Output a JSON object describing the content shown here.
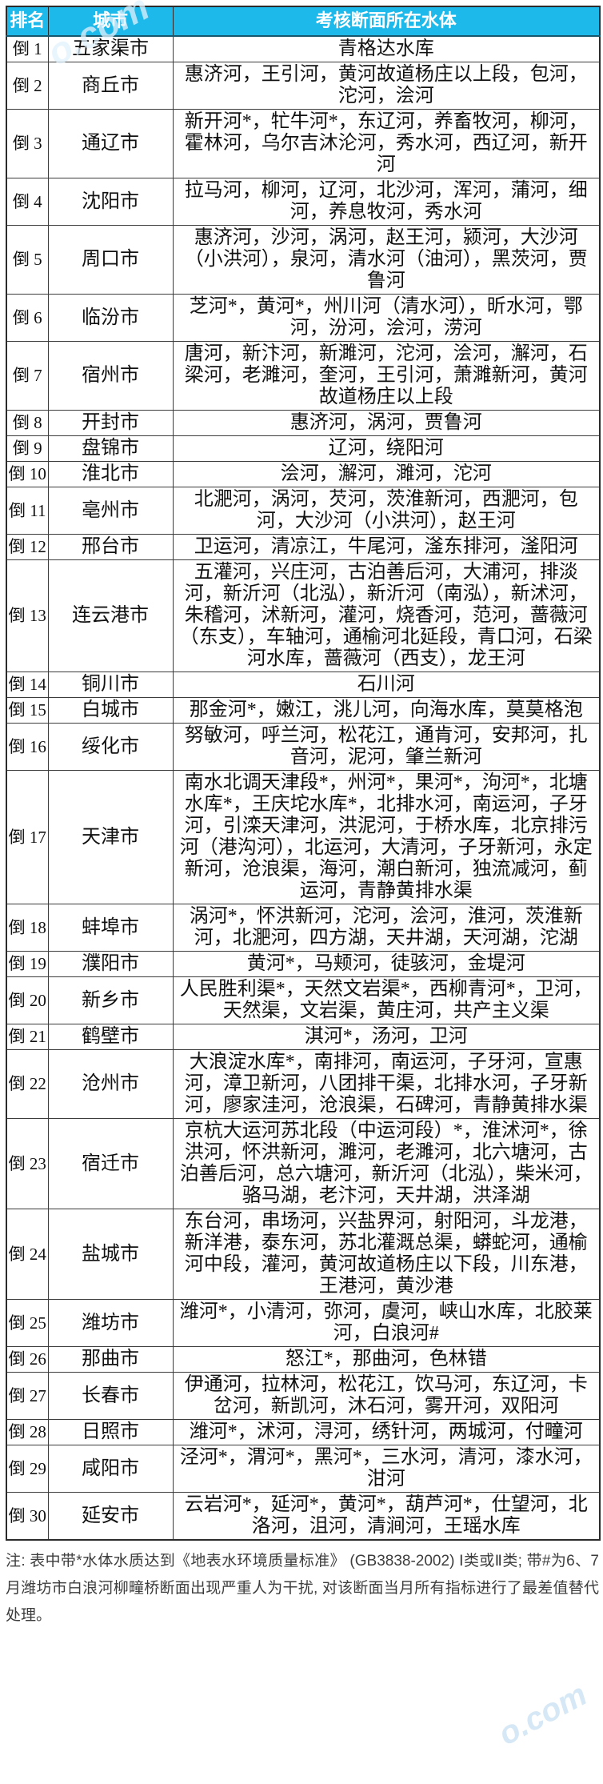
{
  "watermarks": {
    "top": "o.com",
    "bottom": "o.com"
  },
  "colors": {
    "header_bg": "#1db9ea",
    "header_text": "#ffffff",
    "border": "#3c3c3c",
    "outer_border": "#2b2b2b",
    "body_text": "#111111",
    "footnote_text": "#3d3d3d",
    "watermark": "#a5cde8"
  },
  "table": {
    "headers": [
      "排名",
      "城市",
      "考核断面所在水体"
    ],
    "rows": [
      {
        "rank": "倒 1",
        "city": "五家渠市",
        "waters": "青格达水库"
      },
      {
        "rank": "倒 2",
        "city": "商丘市",
        "waters": "惠济河，王引河，黄河故道杨庄以上段，包河，沱河，浍河"
      },
      {
        "rank": "倒 3",
        "city": "通辽市",
        "waters": "新开河*，牤牛河*，东辽河，养畜牧河，柳河，霍林河，乌尔吉沐沦河，秀水河，西辽河，新开河"
      },
      {
        "rank": "倒 4",
        "city": "沈阳市",
        "waters": "拉马河，柳河，辽河，北沙河，浑河，蒲河，细河，养息牧河，秀水河"
      },
      {
        "rank": "倒 5",
        "city": "周口市",
        "waters": "惠济河，沙河，涡河，赵王河，颍河，大沙河（小洪河），泉河，清水河（油河），黑茨河，贾鲁河"
      },
      {
        "rank": "倒 6",
        "city": "临汾市",
        "waters": "芝河*，黄河*，州川河（清水河），昕水河，鄂河，汾河，浍河，涝河"
      },
      {
        "rank": "倒 7",
        "city": "宿州市",
        "waters": "唐河，新汴河，新濉河，沱河，浍河，澥河，石梁河，老濉河，奎河，王引河，萧濉新河，黄河故道杨庄以上段"
      },
      {
        "rank": "倒 8",
        "city": "开封市",
        "waters": "惠济河，涡河，贾鲁河"
      },
      {
        "rank": "倒 9",
        "city": "盘锦市",
        "waters": "辽河，绕阳河"
      },
      {
        "rank": "倒 10",
        "city": "淮北市",
        "waters": "浍河，澥河，濉河，沱河"
      },
      {
        "rank": "倒 11",
        "city": "亳州市",
        "waters": "北淝河，涡河，芡河，茨淮新河，西淝河，包河，大沙河（小洪河），赵王河"
      },
      {
        "rank": "倒 12",
        "city": "邢台市",
        "waters": "卫运河，清凉江，牛尾河，滏东排河，滏阳河"
      },
      {
        "rank": "倒 13",
        "city": "连云港市",
        "waters": "五灌河，兴庄河，古泊善后河，大浦河，排淡河，新沂河（北泓），新沂河（南泓），新沭河，朱稽河，沭新河，灌河，烧香河，范河，蔷薇河（东支），车轴河，通榆河北延段，青口河，石梁河水库，蔷薇河（西支），龙王河"
      },
      {
        "rank": "倒 14",
        "city": "铜川市",
        "waters": "石川河"
      },
      {
        "rank": "倒 15",
        "city": "白城市",
        "waters": "那金河*，嫩江，洮儿河，向海水库，莫莫格泡"
      },
      {
        "rank": "倒 16",
        "city": "绥化市",
        "waters": "努敏河，呼兰河，松花江，通肯河，安邦河，扎音河，泥河，肇兰新河"
      },
      {
        "rank": "倒 17",
        "city": "天津市",
        "waters": "南水北调天津段*，州河*，果河*，泃河*，北塘水库*，王庆坨水库*，北排水河，南运河，子牙河，引滦天津河，洪泥河，于桥水库，北京排污河（港沟河），北运河，大清河，子牙新河，永定新河，沧浪渠，海河，潮白新河，独流减河，蓟运河，青静黄排水渠"
      },
      {
        "rank": "倒 18",
        "city": "蚌埠市",
        "waters": "涡河*，怀洪新河，沱河，浍河，淮河，茨淮新河，北淝河，四方湖，天井湖，天河湖，沱湖"
      },
      {
        "rank": "倒 19",
        "city": "濮阳市",
        "waters": "黄河*，马颊河，徒骇河，金堤河"
      },
      {
        "rank": "倒 20",
        "city": "新乡市",
        "waters": "人民胜利渠*，天然文岩渠*，西柳青河*，卫河，天然渠，文岩渠，黄庄河，共产主义渠"
      },
      {
        "rank": "倒 21",
        "city": "鹤壁市",
        "waters": "淇河*，汤河，卫河"
      },
      {
        "rank": "倒 22",
        "city": "沧州市",
        "waters": "大浪淀水库*，南排河，南运河，子牙河，宣惠河，漳卫新河，八团排干渠，北排水河，子牙新河，廖家洼河，沧浪渠，石碑河，青静黄排水渠"
      },
      {
        "rank": "倒 23",
        "city": "宿迁市",
        "waters": "京杭大运河苏北段（中运河段）*，淮沭河*，徐洪河，怀洪新河，濉河，老濉河，北六塘河，古泊善后河，总六塘河，新沂河（北泓），柴米河，骆马湖，老汴河，天井湖，洪泽湖"
      },
      {
        "rank": "倒 24",
        "city": "盐城市",
        "waters": "东台河，串场河，兴盐界河，射阳河，斗龙港，新洋港，泰东河，苏北灌溉总渠，蟒蛇河，通榆河中段，灌河，黄河故道杨庄以下段，川东港，王港河，黄沙港"
      },
      {
        "rank": "倒 25",
        "city": "潍坊市",
        "waters": "潍河*，小清河，弥河，虞河，峡山水库，北胶莱河，白浪河#"
      },
      {
        "rank": "倒 26",
        "city": "那曲市",
        "waters": "怒江*，那曲河，色林错"
      },
      {
        "rank": "倒 27",
        "city": "长春市",
        "waters": "伊通河，拉林河，松花江，饮马河，东辽河，卡岔河，新凯河，沐石河，雾开河，双阳河"
      },
      {
        "rank": "倒 28",
        "city": "日照市",
        "waters": "潍河*，沭河，浔河，绣针河，两城河，付疃河"
      },
      {
        "rank": "倒 29",
        "city": "咸阳市",
        "waters": "泾河*，渭河*，黑河*，三水河，清河，漆水河，泔河"
      },
      {
        "rank": "倒 30",
        "city": "延安市",
        "waters": "云岩河*，延河*，黄河*，葫芦河*，仕望河，北洛河，沮河，清涧河，王瑶水库"
      }
    ]
  },
  "footnote": "注: 表中带*水体水质达到《地表水环境质量标准》 (GB3838-2002) Ⅰ类或Ⅱ类; 带#为6、7月潍坊市白浪河柳疃桥断面出现严重人为干扰, 对该断面当月所有指标进行了最差值替代处理。"
}
